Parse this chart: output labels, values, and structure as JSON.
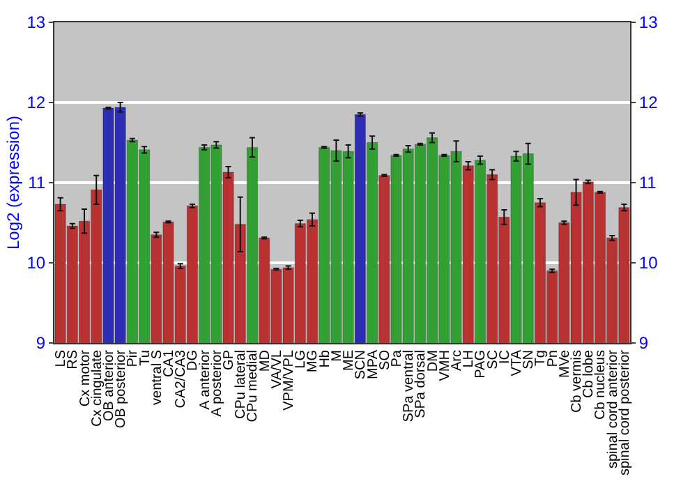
{
  "chart_data": {
    "type": "bar",
    "ylabel": "Log2 (expression)",
    "categories": [
      "LS",
      "RS",
      "Cx motor",
      "Cx cingulate",
      "OB anterior",
      "OB posterior",
      "Pir",
      "Tu",
      "ventral S",
      "CA1",
      "CA2/CA3",
      "DG",
      "A anterior",
      "A posterior",
      "GP",
      "CPu lateral",
      "CPu medial",
      "MD",
      "VA/VL",
      "VPM/VPL",
      "LG",
      "MG",
      "Hb",
      "M",
      "ME",
      "SCN",
      "MPA",
      "SO",
      "Pa",
      "SPa ventral",
      "SPa dorsal",
      "DM",
      "VMH",
      "Arc",
      "LH",
      "PAG",
      "SC",
      "IC",
      "VTA",
      "SN",
      "Tg",
      "Pn",
      "MVe",
      "Cb vermis",
      "Cb lobe",
      "Cb nucleus",
      "spinal cord anterior",
      "spinal cord posterior"
    ],
    "values": [
      10.73,
      10.46,
      10.52,
      10.91,
      11.93,
      11.94,
      11.53,
      11.41,
      10.35,
      10.51,
      9.96,
      10.71,
      11.44,
      11.47,
      11.13,
      10.48,
      11.44,
      10.31,
      9.92,
      9.94,
      10.49,
      10.54,
      11.44,
      11.4,
      11.39,
      11.85,
      11.5,
      11.09,
      11.34,
      11.42,
      11.48,
      11.56,
      11.34,
      11.39,
      11.21,
      11.28,
      11.1,
      10.57,
      11.33,
      11.36,
      10.75,
      9.9,
      10.5,
      10.88,
      11.01,
      10.88,
      10.31,
      10.69
    ],
    "errors": [
      0.08,
      0.03,
      0.15,
      0.18,
      0.01,
      0.06,
      0.02,
      0.04,
      0.03,
      0.01,
      0.03,
      0.02,
      0.03,
      0.04,
      0.07,
      0.34,
      0.12,
      0.01,
      0.01,
      0.02,
      0.04,
      0.08,
      0.01,
      0.13,
      0.08,
      0.02,
      0.08,
      0.01,
      0.01,
      0.04,
      0.01,
      0.06,
      0.01,
      0.13,
      0.05,
      0.05,
      0.06,
      0.09,
      0.06,
      0.13,
      0.05,
      0.02,
      0.02,
      0.16,
      0.02,
      0.01,
      0.03,
      0.04
    ],
    "colors": [
      "#b83232",
      "#b83232",
      "#b83232",
      "#b83232",
      "#2e2eb4",
      "#2e2eb4",
      "#33a033",
      "#33a033",
      "#b83232",
      "#b83232",
      "#b83232",
      "#b83232",
      "#33a033",
      "#33a033",
      "#b83232",
      "#b83232",
      "#33a033",
      "#b83232",
      "#b83232",
      "#b83232",
      "#b83232",
      "#b83232",
      "#33a033",
      "#33a033",
      "#33a033",
      "#2e2eb4",
      "#33a033",
      "#b83232",
      "#33a033",
      "#33a033",
      "#33a033",
      "#33a033",
      "#33a033",
      "#33a033",
      "#b83232",
      "#33a033",
      "#b83232",
      "#b83232",
      "#33a033",
      "#33a033",
      "#b83232",
      "#b83232",
      "#b83232",
      "#b83232",
      "#b83232",
      "#b83232",
      "#b83232",
      "#b83232"
    ],
    "ylim": [
      9,
      13
    ],
    "yticks": [
      9,
      10,
      11,
      12,
      13
    ],
    "y2lim": [
      9,
      13
    ],
    "y2ticks": [
      9,
      10,
      11,
      12,
      13
    ],
    "grid": "y",
    "legend": false
  }
}
